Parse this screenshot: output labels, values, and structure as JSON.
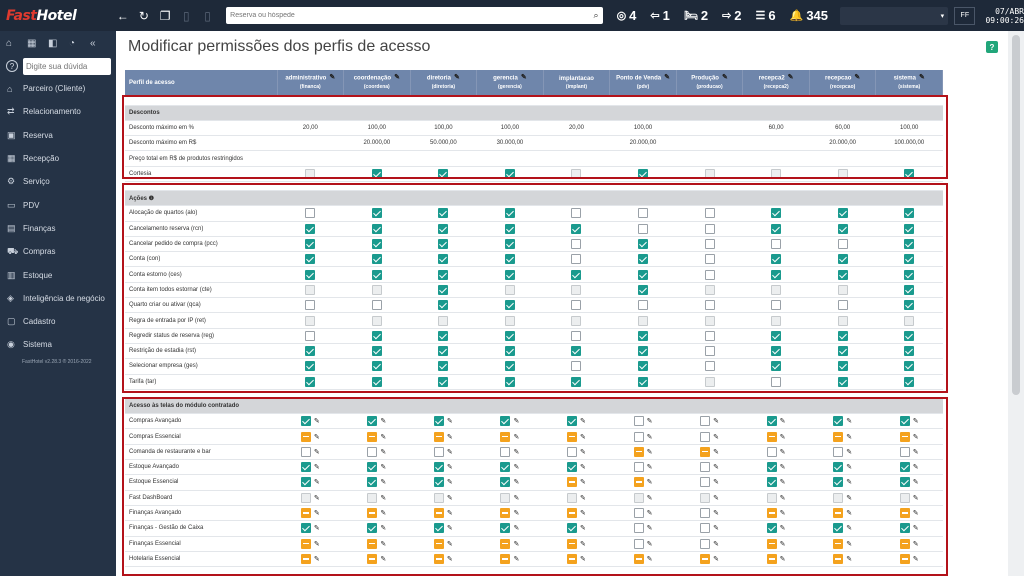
{
  "topbar": {
    "logo_fast": "Fast",
    "logo_hotel": "Hotel",
    "search_placeholder": "Reserva ou hóspede",
    "stats": [
      {
        "icon": "target-icon",
        "glyph": "◎",
        "value": "4"
      },
      {
        "icon": "checkin-icon",
        "glyph": "⇦",
        "value": "1"
      },
      {
        "icon": "bed-icon",
        "glyph": "🛏",
        "value": "2"
      },
      {
        "icon": "checkout-icon",
        "glyph": "⇨",
        "value": "2"
      },
      {
        "icon": "list-icon",
        "glyph": "☰",
        "value": "6"
      },
      {
        "icon": "bell-icon",
        "glyph": "🔔",
        "value": "345"
      }
    ],
    "user_initials": "FF",
    "date": "07/ABR",
    "time": "09:00:26"
  },
  "sidebar": {
    "search_placeholder": "Digite sua dúvida",
    "version": "FastHotel v2.28.3 ® 2016-2022",
    "items": [
      {
        "name": "parceiro",
        "icon": "⌂",
        "label": "Parceiro (Cliente)"
      },
      {
        "name": "relacionamento",
        "icon": "⇄",
        "label": "Relacionamento"
      },
      {
        "name": "reserva",
        "icon": "▣",
        "label": "Reserva"
      },
      {
        "name": "recepcao",
        "icon": "▦",
        "label": "Recepção"
      },
      {
        "name": "servico",
        "icon": "⚙",
        "label": "Serviço"
      },
      {
        "name": "pdv",
        "icon": "▭",
        "label": "PDV"
      },
      {
        "name": "financas",
        "icon": "▤",
        "label": "Finanças"
      },
      {
        "name": "compras",
        "icon": "⛟",
        "label": "Compras"
      },
      {
        "name": "estoque",
        "icon": "▥",
        "label": "Estoque"
      },
      {
        "name": "inteligencia",
        "icon": "◈",
        "label": "Inteligência de negócio"
      },
      {
        "name": "cadastro",
        "icon": "▢",
        "label": "Cadastro"
      },
      {
        "name": "sistema",
        "icon": "◉",
        "label": "Sistema"
      }
    ]
  },
  "main": {
    "title": "Modificar permissões dos perfis de acesso",
    "header_label": "Perfil de acesso",
    "profiles": [
      {
        "name": "administrativo",
        "code": "(financa)"
      },
      {
        "name": "coordenação",
        "code": "(coordena)"
      },
      {
        "name": "diretoria",
        "code": "(diretoria)"
      },
      {
        "name": "gerencia",
        "code": "(gerencia)"
      },
      {
        "name": "implantacao",
        "code": "(implant)",
        "no_edit": true
      },
      {
        "name": "Ponto de Venda",
        "code": "(pdv)"
      },
      {
        "name": "Produção",
        "code": "(producao)"
      },
      {
        "name": "recepca2",
        "code": "(recepca2)"
      },
      {
        "name": "recepcao",
        "code": "(recepcao)"
      },
      {
        "name": "sistema",
        "code": "(sistema)"
      }
    ],
    "sections": [
      {
        "title": "Descontos",
        "info": false,
        "rows": [
          {
            "label": "Desconto máximo em %",
            "type": "text",
            "values": [
              "20,00",
              "100,00",
              "100,00",
              "100,00",
              "20,00",
              "100,00",
              "",
              "60,00",
              "60,00",
              "100,00"
            ]
          },
          {
            "label": "Desconto máximo em R$",
            "type": "text",
            "values": [
              "",
              "20.000,00",
              "50.000,00",
              "30.000,00",
              "",
              "20.000,00",
              "",
              "",
              "20.000,00",
              "100.000,00"
            ]
          },
          {
            "label": "Preço total em R$ de produtos restringidos",
            "type": "text",
            "values": [
              "",
              "",
              "",
              "",
              "",
              "",
              "",
              "",
              "",
              ""
            ]
          },
          {
            "label": "Cortesia",
            "type": "check",
            "values": [
              "d",
              "1",
              "1",
              "1",
              "d",
              "1",
              "d",
              "d",
              "d",
              "1"
            ]
          }
        ]
      },
      {
        "title": "Ações",
        "info": true,
        "rows": [
          {
            "label": "Alocação de quartos (alo)",
            "type": "check",
            "values": [
              "0",
              "1",
              "1",
              "1",
              "0",
              "0",
              "0",
              "1",
              "1",
              "1"
            ]
          },
          {
            "label": "Cancelamento reserva (rcn)",
            "type": "check",
            "values": [
              "1",
              "1",
              "1",
              "1",
              "1",
              "0",
              "0",
              "1",
              "1",
              "1"
            ]
          },
          {
            "label": "Cancelar pedido de compra (pcc)",
            "type": "check",
            "values": [
              "1",
              "1",
              "1",
              "1",
              "0",
              "1",
              "0",
              "0",
              "0",
              "1"
            ]
          },
          {
            "label": "Conta (con)",
            "type": "check",
            "values": [
              "1",
              "1",
              "1",
              "1",
              "0",
              "1",
              "0",
              "1",
              "1",
              "1"
            ]
          },
          {
            "label": "Conta estorno (ces)",
            "type": "check",
            "values": [
              "1",
              "1",
              "1",
              "1",
              "1",
              "1",
              "0",
              "1",
              "1",
              "1"
            ]
          },
          {
            "label": "Conta item todos estornar (cte)",
            "type": "check",
            "values": [
              "d",
              "d",
              "1",
              "d",
              "d",
              "1",
              "d",
              "d",
              "d",
              "1"
            ]
          },
          {
            "label": "Quarto criar ou ativar (qca)",
            "type": "check",
            "values": [
              "0",
              "0",
              "1",
              "1",
              "0",
              "0",
              "0",
              "0",
              "0",
              "1"
            ]
          },
          {
            "label": "Regra de entrada por IP (ret)",
            "type": "check",
            "values": [
              "d",
              "d",
              "d",
              "d",
              "d",
              "d",
              "d",
              "d",
              "d",
              "d"
            ]
          },
          {
            "label": "Regredir status de reserva (reg)",
            "type": "check",
            "values": [
              "0",
              "1",
              "1",
              "1",
              "0",
              "1",
              "0",
              "1",
              "1",
              "1"
            ]
          },
          {
            "label": "Restrição de estadia (rst)",
            "type": "check",
            "values": [
              "1",
              "1",
              "1",
              "1",
              "1",
              "1",
              "0",
              "1",
              "1",
              "1"
            ]
          },
          {
            "label": "Selecionar empresa (ges)",
            "type": "check",
            "values": [
              "1",
              "1",
              "1",
              "1",
              "0",
              "1",
              "0",
              "1",
              "1",
              "1"
            ]
          },
          {
            "label": "Tarifa (tar)",
            "type": "check",
            "values": [
              "1",
              "1",
              "1",
              "1",
              "1",
              "1",
              "d",
              "0",
              "1",
              "1"
            ]
          }
        ]
      },
      {
        "title": "Acesso às telas do módulo contratado",
        "info": false,
        "rows": [
          {
            "label": "Compras Avançado",
            "type": "screen",
            "values": [
              "1",
              "1",
              "1",
              "1",
              "1",
              "0",
              "0",
              "1",
              "1",
              "1"
            ]
          },
          {
            "label": "Compras Essencial",
            "type": "screen",
            "values": [
              "p",
              "p",
              "p",
              "p",
              "p",
              "0",
              "0",
              "p",
              "p",
              "p"
            ]
          },
          {
            "label": "Comanda de restaurante e bar",
            "type": "screen",
            "values": [
              "0",
              "0",
              "0",
              "0",
              "0",
              "p",
              "p",
              "0",
              "0",
              "0"
            ]
          },
          {
            "label": "Estoque Avançado",
            "type": "screen",
            "values": [
              "1",
              "1",
              "1",
              "1",
              "1",
              "0",
              "0",
              "1",
              "1",
              "1"
            ]
          },
          {
            "label": "Estoque Essencial",
            "type": "screen",
            "values": [
              "1",
              "1",
              "1",
              "1",
              "p",
              "p",
              "0",
              "1",
              "1",
              "1"
            ]
          },
          {
            "label": "Fast DashBoard",
            "type": "screen",
            "values": [
              "d",
              "d",
              "d",
              "d",
              "d",
              "d",
              "d",
              "d",
              "d",
              "d"
            ]
          },
          {
            "label": "Finanças Avançado",
            "type": "screen",
            "values": [
              "p",
              "p",
              "p",
              "p",
              "p",
              "0",
              "0",
              "p",
              "p",
              "p"
            ]
          },
          {
            "label": "Finanças - Gestão de Caixa",
            "type": "screen",
            "values": [
              "1",
              "1",
              "1",
              "1",
              "1",
              "0",
              "0",
              "1",
              "1",
              "1"
            ]
          },
          {
            "label": "Finanças Essencial",
            "type": "screen",
            "values": [
              "p",
              "p",
              "p",
              "p",
              "p",
              "0",
              "0",
              "p",
              "p",
              "p"
            ]
          },
          {
            "label": "Hotelaria Essencial",
            "type": "screen",
            "values": [
              "p",
              "p",
              "p",
              "p",
              "p",
              "p",
              "p",
              "p",
              "p",
              "p"
            ]
          }
        ]
      }
    ]
  }
}
